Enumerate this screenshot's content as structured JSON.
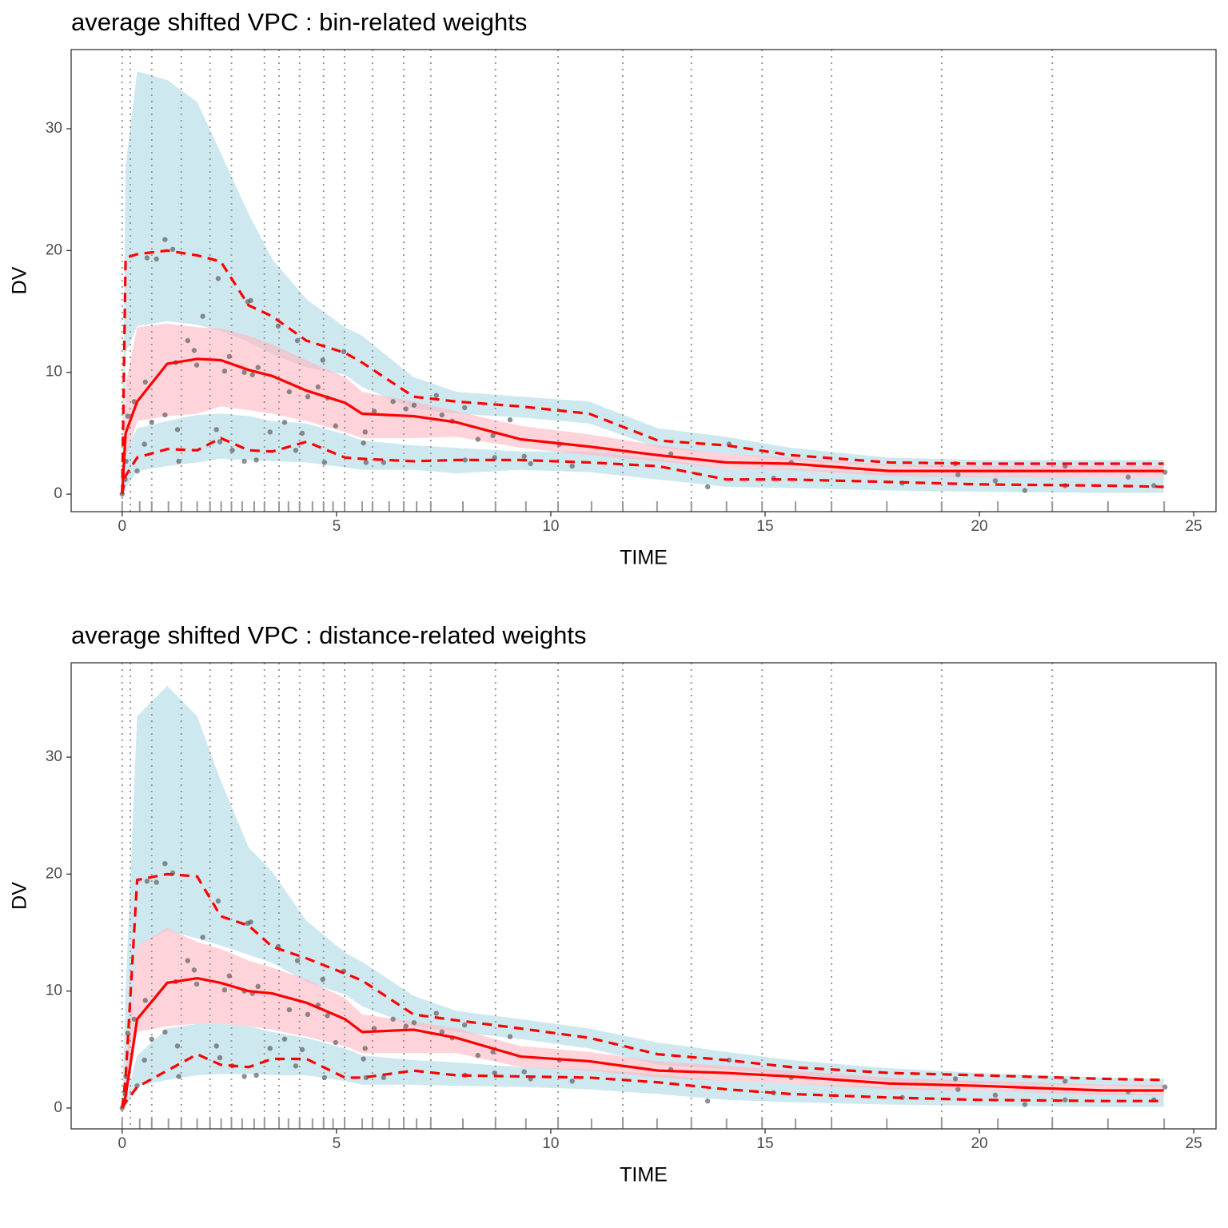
{
  "chart_data": [
    {
      "type": "line",
      "title": "average shifted VPC : bin-related weights",
      "xlabel": "TIME",
      "ylabel": "DV",
      "xlim": [
        -1.19,
        25.52
      ],
      "ylim": [
        -1.44,
        36.5
      ],
      "xticks": [
        0,
        5,
        10,
        15,
        20,
        25
      ],
      "yticks": [
        0,
        10,
        20,
        30
      ],
      "x": [
        0,
        0.08,
        0.35,
        1.05,
        1.75,
        2.3,
        2.95,
        3.5,
        4.3,
        5.2,
        5.6,
        6.8,
        7.8,
        9.3,
        10.9,
        12.5,
        14.1,
        15.6,
        17.9,
        20.0,
        22.9,
        24.3
      ],
      "bands": [
        {
          "color": "#add8e6",
          "upper": [
            0,
            27,
            34.7,
            34,
            32.2,
            28,
            23,
            19.3,
            16,
            13.7,
            13,
            9.6,
            8.4,
            8,
            7.6,
            5.4,
            4.7,
            3.8,
            3.0,
            2.8,
            2.8,
            2.8
          ],
          "lower": [
            0,
            11.5,
            13.8,
            14.2,
            13.9,
            13.4,
            12.5,
            11.5,
            10.4,
            9.8,
            8.8,
            7.0,
            6.6,
            6.3,
            5.8,
            3.8,
            3.3,
            2.8,
            2.3,
            2.1,
            2.1,
            2.1
          ]
        },
        {
          "color": "#add8e6",
          "upper": [
            0,
            3.6,
            5.4,
            6,
            6.5,
            6.6,
            6.4,
            6.0,
            5.8,
            4.9,
            4.4,
            4,
            3.8,
            3.5,
            3.5,
            2.9,
            2.1,
            2.1,
            1.7,
            1.5,
            1.4,
            1.4
          ],
          "lower": [
            0,
            0.5,
            1.9,
            2.3,
            2.6,
            2.9,
            2.8,
            2.7,
            2.6,
            2.2,
            2.0,
            2.0,
            1.7,
            2.0,
            1.8,
            1.2,
            0.6,
            0.5,
            0.3,
            0.2,
            0.1,
            0.1
          ]
        },
        {
          "color": "#ffb6c1",
          "upper": [
            0,
            9,
            13.7,
            14,
            13.7,
            13.6,
            13,
            12.3,
            11,
            9.6,
            8.4,
            7.6,
            6.8,
            5.6,
            4.9,
            4,
            3.3,
            3,
            2.4,
            2.3,
            2.3,
            2.3
          ],
          "lower": [
            0,
            3,
            6,
            6.4,
            6.6,
            7.2,
            6.9,
            6.6,
            6.0,
            5.1,
            4.6,
            4.6,
            4.7,
            3.8,
            3.2,
            2.7,
            2.1,
            2.0,
            1.5,
            1.4,
            1.4,
            1.4
          ]
        }
      ],
      "series": [
        {
          "color": "#ff0000",
          "dashed": true,
          "values": [
            0,
            19.4,
            19.7,
            20.0,
            19.6,
            19.1,
            15.5,
            14.6,
            12.6,
            11.6,
            10.8,
            8.0,
            7.6,
            7.2,
            6.6,
            4.4,
            4.0,
            3.2,
            2.6,
            2.5,
            2.5,
            2.5
          ]
        },
        {
          "color": "#ff0000",
          "dashed": false,
          "values": [
            0,
            5.0,
            7.6,
            10.7,
            11.1,
            11.0,
            10.2,
            9.7,
            8.5,
            7.5,
            6.6,
            6.4,
            5.9,
            4.5,
            3.9,
            3.2,
            2.6,
            2.5,
            1.9,
            1.9,
            1.9,
            1.9
          ]
        },
        {
          "color": "#ff0000",
          "dashed": true,
          "values": [
            0,
            1.5,
            3.0,
            3.7,
            3.6,
            4.6,
            3.6,
            3.5,
            4.3,
            3.0,
            2.9,
            2.7,
            2.8,
            2.8,
            2.6,
            2.3,
            1.2,
            1.2,
            1.0,
            0.8,
            0.7,
            0.6
          ]
        }
      ],
      "points": {
        "color": "#555555",
        "x": [
          0,
          0.09,
          0.13,
          0.07,
          0.28,
          0.35,
          0.52,
          0.54,
          0.58,
          0.69,
          0.8,
          1.0,
          1.0,
          1.18,
          1.25,
          1.29,
          1.32,
          1.53,
          1.68,
          1.74,
          1.88,
          2.2,
          2.24,
          2.28,
          2.39,
          2.5,
          2.57,
          2.85,
          2.85,
          2.93,
          3.0,
          3.04,
          3.13,
          3.17,
          3.45,
          3.64,
          3.79,
          3.9,
          4.05,
          4.09,
          4.2,
          4.33,
          4.57,
          4.68,
          4.72,
          4.79,
          4.98,
          5.17,
          5.63,
          5.67,
          5.69,
          5.88,
          6.1,
          6.32,
          6.62,
          6.81,
          7.33,
          7.46,
          7.7,
          7.99,
          8.0,
          8.3,
          8.65,
          8.69,
          9.05,
          9.38,
          9.53,
          10.2,
          10.5,
          12.8,
          13.66,
          14.16,
          15.2,
          15.61,
          18.2,
          19.5,
          19.44,
          20.37,
          21.06,
          22.0,
          22.0,
          23.47,
          24.07,
          24.33
        ],
        "y": [
          0,
          2.7,
          6.4,
          1.2,
          7.6,
          1.9,
          4.1,
          9.2,
          19.4,
          5.9,
          19.3,
          6.5,
          20.9,
          20.1,
          10.8,
          5.3,
          2.7,
          12.6,
          11.8,
          10.6,
          14.6,
          5.3,
          17.7,
          4.3,
          10.1,
          11.3,
          3.6,
          10.0,
          2.7,
          15.8,
          15.9,
          9.8,
          2.8,
          10.4,
          5.1,
          13.8,
          5.9,
          8.4,
          3.6,
          12.6,
          5.0,
          8.0,
          8.8,
          11.0,
          2.6,
          7.9,
          5.6,
          11.7,
          4.2,
          5.1,
          2.6,
          6.8,
          2.6,
          7.6,
          7.0,
          7.3,
          8.1,
          6.5,
          6.0,
          7.1,
          2.8,
          4.5,
          4.8,
          3.0,
          6.1,
          3.1,
          2.5,
          4.1,
          2.3,
          3.3,
          0.6,
          4.1,
          1.3,
          2.6,
          0.9,
          1.6,
          2.5,
          1.1,
          0.3,
          2.3,
          0.7,
          1.4,
          0.7,
          1.8
        ]
      },
      "bin_lines": [
        0,
        0.19,
        0.69,
        1.38,
        2.05,
        2.55,
        3.32,
        3.66,
        4.14,
        4.7,
        5.19,
        5.84,
        6.57,
        7.2,
        8.71,
        10.17,
        11.68,
        13.28,
        14.93,
        16.55,
        19.12,
        21.7
      ],
      "rug": [
        0,
        0.41,
        0.69,
        1.08,
        1.38,
        1.75,
        2.05,
        2.31,
        2.55,
        2.8,
        3.08,
        3.32,
        3.66,
        3.88,
        4.14,
        4.44,
        4.7,
        4.92,
        5.19,
        5.6,
        5.84,
        6.23,
        6.57,
        6.87,
        7.2,
        7.95,
        8.71,
        9.42,
        10.17,
        10.95,
        11.68,
        12.48,
        13.28,
        14.1,
        14.93,
        15.71,
        16.55,
        17.84,
        19.12,
        20.43,
        21.7,
        23.0,
        24.31
      ]
    },
    {
      "type": "line",
      "title": "average shifted VPC : distance-related weights",
      "xlabel": "TIME",
      "ylabel": "DV",
      "xlim": [
        -1.19,
        25.52
      ],
      "ylim": [
        -1.78,
        38.07
      ],
      "xticks": [
        0,
        5,
        10,
        15,
        20,
        25
      ],
      "yticks": [
        0,
        10,
        20,
        30
      ],
      "x": [
        0,
        0.08,
        0.35,
        1.05,
        1.75,
        2.3,
        2.95,
        3.5,
        4.3,
        5.2,
        5.6,
        6.8,
        7.8,
        9.3,
        10.9,
        12.5,
        14.1,
        15.6,
        17.9,
        20.0,
        22.9,
        24.3
      ],
      "bands": [
        {
          "color": "#add8e6",
          "upper": [
            0,
            10,
            33.5,
            36.1,
            33.5,
            28,
            22.3,
            20.2,
            16,
            13.3,
            12.5,
            9.6,
            8.3,
            7.6,
            6.8,
            5.6,
            4.8,
            4.1,
            3.4,
            3.0,
            2.6,
            2.5
          ],
          "lower": [
            0,
            1,
            13.8,
            15.2,
            14.5,
            13.9,
            13.1,
            12.4,
            10.8,
            9.7,
            8.7,
            7.0,
            6.5,
            5.9,
            5.1,
            3.7,
            3.3,
            2.8,
            2.3,
            2.1,
            1.9,
            1.8
          ]
        },
        {
          "color": "#add8e6",
          "upper": [
            0,
            0.5,
            4.5,
            6.8,
            7.2,
            7.2,
            7.0,
            6.5,
            6.0,
            5.1,
            4.5,
            4.1,
            3.9,
            3.5,
            3.3,
            2.9,
            2.3,
            2.1,
            1.8,
            1.5,
            1.3,
            1.2
          ],
          "lower": [
            0,
            0.1,
            1.9,
            2.4,
            2.8,
            2.9,
            2.9,
            2.8,
            2.8,
            2.3,
            2.0,
            2.0,
            1.9,
            1.8,
            1.6,
            1.2,
            0.7,
            0.5,
            0.3,
            0.2,
            0.1,
            0.1
          ]
        },
        {
          "color": "#ffb6c1",
          "upper": [
            0,
            3,
            13.8,
            15.4,
            14.2,
            13.6,
            12.6,
            12,
            11,
            9.4,
            8,
            7.4,
            6.8,
            5.3,
            4.8,
            4,
            3.6,
            3.2,
            2.6,
            2.3,
            2.0,
            2.0
          ],
          "lower": [
            0,
            0.3,
            6.5,
            7.0,
            7.2,
            7.2,
            7.0,
            6.7,
            6.1,
            5.3,
            4.7,
            4.7,
            4.7,
            3.5,
            3.2,
            2.6,
            2.3,
            2.1,
            1.6,
            1.5,
            1.1,
            1.1
          ]
        }
      ],
      "series": [
        {
          "color": "#ff0000",
          "dashed": true,
          "values": [
            0,
            2.5,
            19.5,
            20.0,
            19.8,
            16.4,
            15.6,
            13.8,
            12.8,
            11.5,
            10.9,
            8.0,
            7.5,
            6.8,
            6.0,
            4.6,
            4.1,
            3.5,
            3.0,
            2.8,
            2.5,
            2.4
          ]
        },
        {
          "color": "#ff0000",
          "dashed": false,
          "values": [
            0,
            1.0,
            7.6,
            10.7,
            11.1,
            10.7,
            10.0,
            9.8,
            9.0,
            7.6,
            6.5,
            6.7,
            6.0,
            4.4,
            4.0,
            3.2,
            3.0,
            2.7,
            2.1,
            1.9,
            1.5,
            1.5
          ]
        },
        {
          "color": "#ff0000",
          "dashed": true,
          "values": [
            0,
            0.5,
            1.8,
            3.2,
            4.6,
            3.7,
            3.5,
            4.2,
            4.2,
            2.6,
            2.6,
            3.2,
            2.8,
            2.7,
            2.6,
            2.2,
            1.6,
            1.2,
            0.9,
            0.7,
            0.6,
            0.6
          ]
        }
      ],
      "points": {
        "color": "#555555",
        "x": [
          0,
          0.09,
          0.13,
          0.07,
          0.28,
          0.35,
          0.52,
          0.54,
          0.58,
          0.69,
          0.8,
          1.0,
          1.0,
          1.18,
          1.25,
          1.29,
          1.32,
          1.53,
          1.68,
          1.74,
          1.88,
          2.2,
          2.24,
          2.28,
          2.39,
          2.5,
          2.57,
          2.85,
          2.85,
          2.93,
          3.0,
          3.04,
          3.13,
          3.17,
          3.45,
          3.64,
          3.79,
          3.9,
          4.05,
          4.09,
          4.2,
          4.33,
          4.57,
          4.68,
          4.72,
          4.79,
          4.98,
          5.17,
          5.63,
          5.67,
          5.69,
          5.88,
          6.1,
          6.32,
          6.62,
          6.81,
          7.33,
          7.46,
          7.7,
          7.99,
          8.0,
          8.3,
          8.65,
          8.69,
          9.05,
          9.38,
          9.53,
          10.2,
          10.5,
          12.8,
          13.66,
          14.16,
          15.2,
          15.61,
          18.2,
          19.5,
          19.44,
          20.37,
          21.06,
          22.0,
          22.0,
          23.47,
          24.07,
          24.33
        ],
        "y": [
          0,
          2.7,
          6.4,
          1.2,
          7.6,
          1.9,
          4.1,
          9.2,
          19.4,
          5.9,
          19.3,
          6.5,
          20.9,
          20.1,
          10.8,
          5.3,
          2.7,
          12.6,
          11.8,
          10.6,
          14.6,
          5.3,
          17.7,
          4.3,
          10.1,
          11.3,
          3.6,
          10.0,
          2.7,
          15.8,
          15.9,
          9.8,
          2.8,
          10.4,
          5.1,
          13.8,
          5.9,
          8.4,
          3.6,
          12.6,
          5.0,
          8.0,
          8.8,
          11.0,
          2.6,
          7.9,
          5.6,
          11.7,
          4.2,
          5.1,
          2.6,
          6.8,
          2.6,
          7.6,
          7.0,
          7.3,
          8.1,
          6.5,
          6.0,
          7.1,
          2.8,
          4.5,
          4.8,
          3.0,
          6.1,
          3.1,
          2.5,
          4.1,
          2.3,
          3.3,
          0.6,
          4.1,
          1.3,
          2.6,
          0.9,
          1.6,
          2.5,
          1.1,
          0.3,
          2.3,
          0.7,
          1.4,
          0.7,
          1.8
        ]
      },
      "bin_lines": [
        0,
        0.19,
        0.69,
        1.38,
        2.05,
        2.55,
        3.32,
        3.66,
        4.14,
        4.7,
        5.19,
        5.84,
        6.57,
        7.2,
        8.71,
        10.17,
        11.68,
        13.28,
        14.93,
        16.55,
        19.12,
        21.7
      ],
      "rug": [
        0,
        0.41,
        0.69,
        1.08,
        1.38,
        1.75,
        2.05,
        2.31,
        2.55,
        2.8,
        3.08,
        3.32,
        3.66,
        3.88,
        4.14,
        4.44,
        4.7,
        4.92,
        5.19,
        5.6,
        5.84,
        6.23,
        6.57,
        6.87,
        7.2,
        7.95,
        8.71,
        9.42,
        10.17,
        10.95,
        11.68,
        12.48,
        13.28,
        14.1,
        14.93,
        15.71,
        16.55,
        17.84,
        19.12,
        20.43,
        21.7,
        23.0,
        24.31
      ]
    }
  ]
}
